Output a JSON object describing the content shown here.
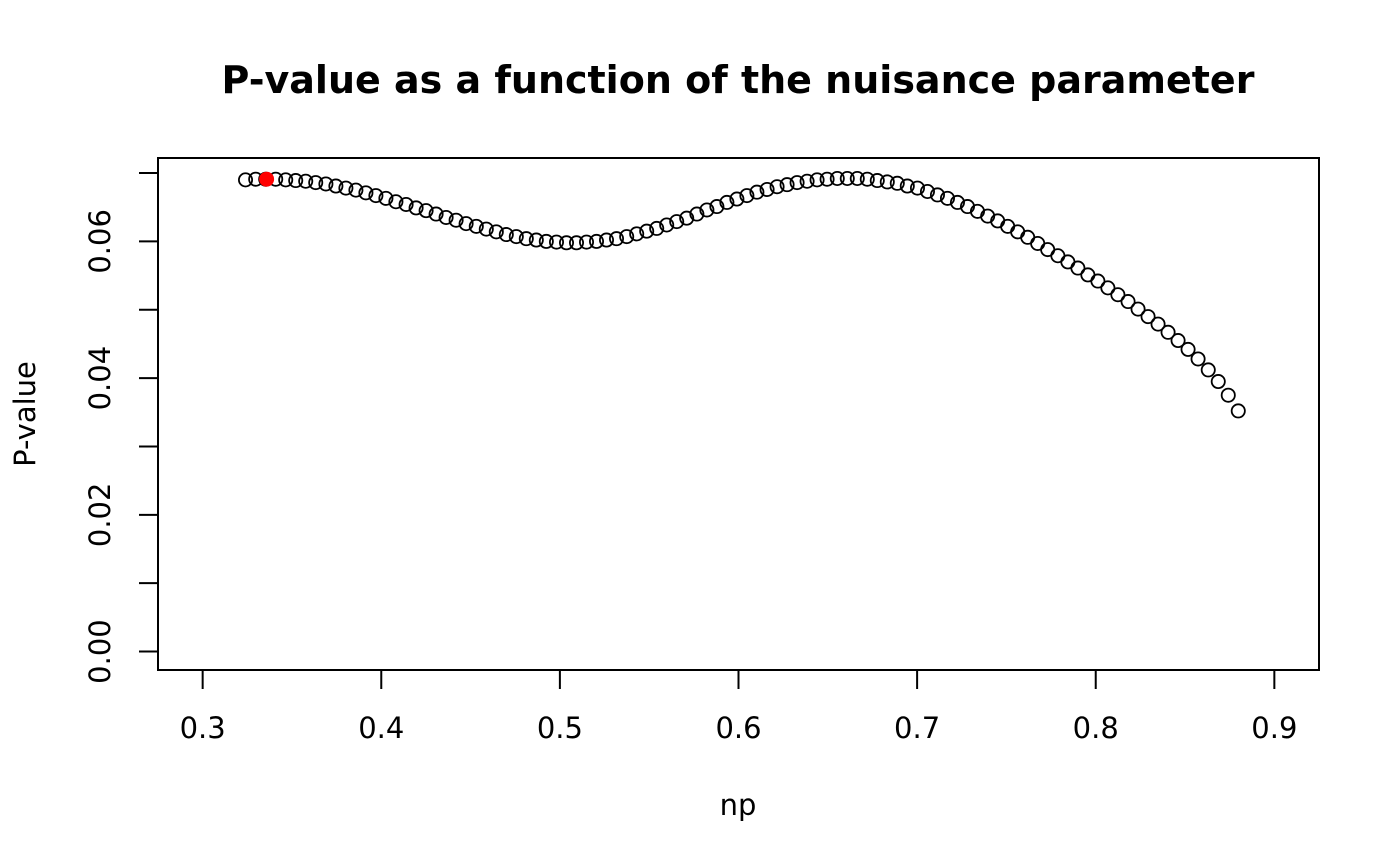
{
  "chart_data": {
    "type": "scatter",
    "title": "P-value as a function of the nuisance parameter",
    "xlabel": "np",
    "ylabel": "P-value",
    "xlim": [
      0.275,
      0.925
    ],
    "ylim": [
      -0.0027,
      0.0722
    ],
    "xticks": [
      0.3,
      0.4,
      0.5,
      0.6,
      0.7,
      0.8,
      0.9
    ],
    "xtick_labels": [
      "0.3",
      "0.4",
      "0.5",
      "0.6",
      "0.7",
      "0.8",
      "0.9"
    ],
    "yticks": [
      0.0,
      0.01,
      0.02,
      0.03,
      0.04,
      0.05,
      0.06,
      0.07
    ],
    "ytick_labels": [
      "0.00",
      "",
      "0.02",
      "",
      "0.04",
      "",
      "0.06",
      ""
    ],
    "grid": false,
    "marker": "open-circle",
    "highlight": {
      "x": 0.3358,
      "y": 0.0691,
      "color": "#ff0000"
    },
    "series": [
      {
        "x": [
          0.324,
          0.3297,
          0.3353,
          0.3409,
          0.3465,
          0.3521,
          0.3577,
          0.3633,
          0.369,
          0.3746,
          0.3802,
          0.3858,
          0.3914,
          0.397,
          0.4026,
          0.4082,
          0.4139,
          0.4195,
          0.4251,
          0.4307,
          0.4363,
          0.4419,
          0.4475,
          0.4532,
          0.4588,
          0.4644,
          0.47,
          0.4756,
          0.4812,
          0.4868,
          0.4924,
          0.4981,
          0.5037,
          0.5093,
          0.5149,
          0.5205,
          0.5261,
          0.5317,
          0.5374,
          0.543,
          0.5486,
          0.5542,
          0.5598,
          0.5654,
          0.571,
          0.5767,
          0.5823,
          0.5879,
          0.5935,
          0.5991,
          0.6047,
          0.6103,
          0.616,
          0.6216,
          0.6272,
          0.6328,
          0.6384,
          0.644,
          0.6496,
          0.6553,
          0.6609,
          0.6665,
          0.6721,
          0.6777,
          0.6833,
          0.6889,
          0.6945,
          0.7002,
          0.7058,
          0.7114,
          0.717,
          0.7226,
          0.7282,
          0.7338,
          0.7395,
          0.7451,
          0.7507,
          0.7563,
          0.7619,
          0.7675,
          0.7731,
          0.7788,
          0.7844,
          0.79,
          0.7956,
          0.8012,
          0.8068,
          0.8124,
          0.8181,
          0.8237,
          0.8293,
          0.8349,
          0.8405,
          0.8461,
          0.8517,
          0.8573,
          0.863,
          0.8686,
          0.8742,
          0.8798
        ],
        "y": [
          0.069,
          0.0691,
          0.0691,
          0.0691,
          0.069,
          0.0689,
          0.0688,
          0.0686,
          0.0684,
          0.0681,
          0.0678,
          0.0675,
          0.0671,
          0.0667,
          0.0663,
          0.0658,
          0.0654,
          0.0649,
          0.0645,
          0.064,
          0.0635,
          0.0631,
          0.0626,
          0.0622,
          0.0618,
          0.0614,
          0.061,
          0.0607,
          0.0604,
          0.0602,
          0.06,
          0.0599,
          0.0598,
          0.0598,
          0.0599,
          0.06,
          0.0602,
          0.0604,
          0.0607,
          0.0611,
          0.0615,
          0.0619,
          0.0624,
          0.0629,
          0.0634,
          0.064,
          0.0646,
          0.0651,
          0.0657,
          0.0662,
          0.0667,
          0.0672,
          0.0676,
          0.068,
          0.0683,
          0.0686,
          0.0688,
          0.069,
          0.0691,
          0.0692,
          0.0692,
          0.0692,
          0.0691,
          0.0689,
          0.0687,
          0.0685,
          0.0681,
          0.0678,
          0.0673,
          0.0668,
          0.0663,
          0.0657,
          0.0651,
          0.0644,
          0.0637,
          0.063,
          0.0622,
          0.0614,
          0.0606,
          0.0597,
          0.0588,
          0.0579,
          0.057,
          0.0561,
          0.0551,
          0.0542,
          0.0532,
          0.0522,
          0.0512,
          0.0501,
          0.049,
          0.0479,
          0.0467,
          0.0455,
          0.0442,
          0.0428,
          0.0412,
          0.0395,
          0.0375,
          0.0352
        ]
      }
    ]
  }
}
